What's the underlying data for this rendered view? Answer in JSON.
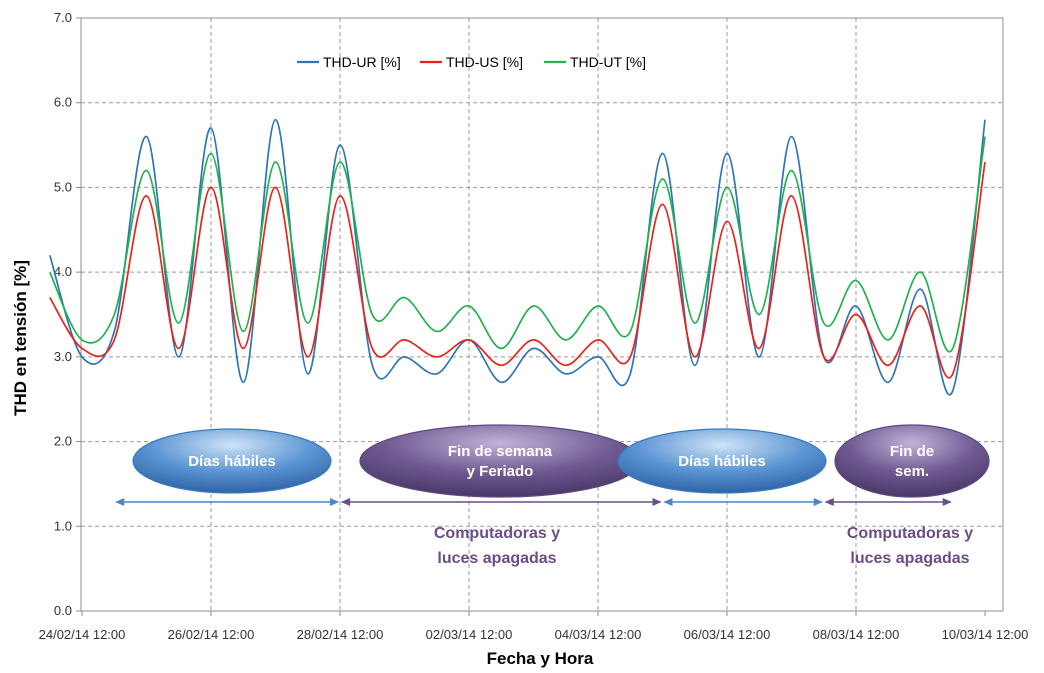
{
  "chart_data": {
    "type": "line",
    "title": "",
    "xlabel": "Fecha y Hora",
    "ylabel": "THD en tensión [%]",
    "ylim": [
      0,
      7
    ],
    "yticks": [
      "0.0",
      "1.0",
      "2.0",
      "3.0",
      "4.0",
      "5.0",
      "6.0",
      "7.0"
    ],
    "xlim": [
      "24/02/14 00:00",
      "10/03/14 12:00"
    ],
    "xticks": [
      "24/02/14 12:00",
      "26/02/14 12:00",
      "28/02/14 12:00",
      "02/03/14 12:00",
      "04/03/14 12:00",
      "06/03/14 12:00",
      "08/03/14 12:00",
      "10/03/14 12:00"
    ],
    "grid": true,
    "legend_position": "top-center",
    "series": [
      {
        "name": "THD-UR [%]",
        "color": "#2e75b6",
        "x": [
          "24/02/14 00:00",
          "24/02/14 12:00",
          "25/02/14 00:00",
          "25/02/14 12:00",
          "26/02/14 00:00",
          "26/02/14 12:00",
          "27/02/14 00:00",
          "27/02/14 12:00",
          "28/02/14 00:00",
          "28/02/14 12:00",
          "01/03/14 00:00",
          "01/03/14 12:00",
          "02/03/14 00:00",
          "02/03/14 12:00",
          "03/03/14 00:00",
          "03/03/14 12:00",
          "04/03/14 00:00",
          "04/03/14 12:00",
          "05/03/14 00:00",
          "05/03/14 12:00",
          "06/03/14 00:00",
          "06/03/14 12:00",
          "07/03/14 00:00",
          "07/03/14 12:00",
          "08/03/14 00:00",
          "08/03/14 12:00",
          "09/03/14 00:00",
          "09/03/14 12:00",
          "10/03/14 00:00",
          "10/03/14 12:00"
        ],
        "values": [
          4.2,
          3.0,
          3.3,
          5.6,
          3.0,
          5.7,
          2.7,
          5.8,
          2.8,
          5.5,
          2.9,
          3.0,
          2.8,
          3.2,
          2.7,
          3.1,
          2.8,
          3.0,
          2.8,
          5.4,
          2.9,
          5.4,
          3.0,
          5.6,
          3.0,
          3.6,
          2.7,
          3.8,
          2.6,
          5.8
        ]
      },
      {
        "name": "THD-US [%]",
        "color": "#e8231c",
        "x": [
          "24/02/14 00:00",
          "24/02/14 12:00",
          "25/02/14 00:00",
          "25/02/14 12:00",
          "26/02/14 00:00",
          "26/02/14 12:00",
          "27/02/14 00:00",
          "27/02/14 12:00",
          "28/02/14 00:00",
          "28/02/14 12:00",
          "01/03/14 00:00",
          "01/03/14 12:00",
          "02/03/14 00:00",
          "02/03/14 12:00",
          "03/03/14 00:00",
          "03/03/14 12:00",
          "04/03/14 00:00",
          "04/03/14 12:00",
          "05/03/14 00:00",
          "05/03/14 12:00",
          "06/03/14 00:00",
          "06/03/14 12:00",
          "07/03/14 00:00",
          "07/03/14 12:00",
          "08/03/14 00:00",
          "08/03/14 12:00",
          "09/03/14 00:00",
          "09/03/14 12:00",
          "10/03/14 00:00",
          "10/03/14 12:00"
        ],
        "values": [
          3.7,
          3.1,
          3.2,
          4.9,
          3.1,
          5.0,
          3.1,
          5.0,
          3.0,
          4.9,
          3.1,
          3.2,
          3.0,
          3.2,
          2.9,
          3.2,
          2.9,
          3.2,
          3.0,
          4.8,
          3.0,
          4.6,
          3.1,
          4.9,
          3.0,
          3.5,
          2.9,
          3.6,
          2.8,
          5.3
        ]
      },
      {
        "name": "THD-UT [%]",
        "color": "#22b14c",
        "x": [
          "24/02/14 00:00",
          "24/02/14 12:00",
          "25/02/14 00:00",
          "25/02/14 12:00",
          "26/02/14 00:00",
          "26/02/14 12:00",
          "27/02/14 00:00",
          "27/02/14 12:00",
          "28/02/14 00:00",
          "28/02/14 12:00",
          "01/03/14 00:00",
          "01/03/14 12:00",
          "02/03/14 00:00",
          "02/03/14 12:00",
          "03/03/14 00:00",
          "03/03/14 12:00",
          "04/03/14 00:00",
          "04/03/14 12:00",
          "05/03/14 00:00",
          "05/03/14 12:00",
          "06/03/14 00:00",
          "06/03/14 12:00",
          "07/03/14 00:00",
          "07/03/14 12:00",
          "08/03/14 00:00",
          "08/03/14 12:00",
          "09/03/14 00:00",
          "09/03/14 12:00",
          "10/03/14 00:00",
          "10/03/14 12:00"
        ],
        "values": [
          4.0,
          3.2,
          3.5,
          5.2,
          3.4,
          5.4,
          3.3,
          5.3,
          3.4,
          5.3,
          3.5,
          3.7,
          3.3,
          3.6,
          3.1,
          3.6,
          3.2,
          3.6,
          3.3,
          5.1,
          3.4,
          5.0,
          3.5,
          5.2,
          3.4,
          3.9,
          3.2,
          4.0,
          3.1,
          5.6
        ]
      }
    ],
    "annotations": {
      "periods": [
        {
          "label_lines": [
            "Días hábiles"
          ],
          "start": "25/02/14 00:00",
          "end": "28/02/14 12:00",
          "kind": "work"
        },
        {
          "label_lines": [
            "Fin de semana",
            "y Feriado"
          ],
          "start": "28/02/14 12:00",
          "end": "05/03/14 12:00",
          "kind": "off"
        },
        {
          "label_lines": [
            "Días hábiles"
          ],
          "start": "05/03/14 12:00",
          "end": "08/03/14 00:00",
          "kind": "work"
        },
        {
          "label_lines": [
            "Fin de",
            "sem."
          ],
          "start": "08/03/14 00:00",
          "end": "10/03/14 00:00",
          "kind": "off"
        }
      ],
      "notes": [
        {
          "lines": [
            "Computadoras y",
            "luces apagadas"
          ],
          "under_period": 1
        },
        {
          "lines": [
            "Computadoras y",
            "luces apagadas"
          ],
          "under_period": 3
        }
      ]
    }
  },
  "style": {
    "work_color": "#3a79c2",
    "work_highlight": "#a9cbef",
    "off_color": "#5e4a7e",
    "off_highlight": "#a895c4",
    "arrow_work_color": "#4a86c8",
    "arrow_off_color": "#6b4d87"
  }
}
